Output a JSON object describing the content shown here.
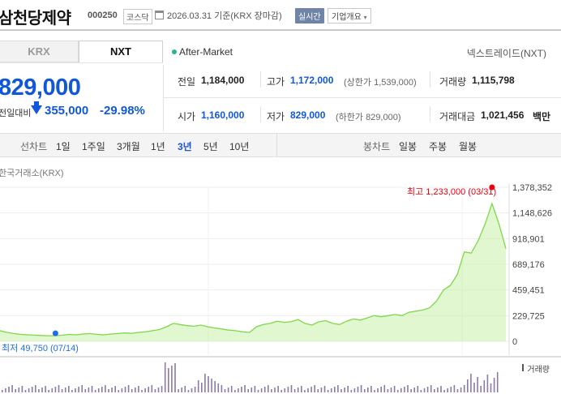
{
  "header": {
    "company_name": "삼천당제약",
    "code": "000250",
    "market_tag": "코스닥",
    "as_of": "2026.03.31  기준(KRX 장마감)",
    "realtime_label": "실시간",
    "company_info_label": "기업개요"
  },
  "tabs": [
    {
      "label": "KRX",
      "selected": false
    },
    {
      "label": "NXT",
      "selected": true
    }
  ],
  "session": {
    "after_market": "After-Market",
    "nxt_label": "넥스트레이드(NXT)"
  },
  "price": {
    "current": "829,000",
    "change_label": "전일대비",
    "change": "355,000",
    "change_pct": "-29.98%",
    "color": "#1058d8"
  },
  "stats": {
    "prev_close_label": "전일",
    "prev_close": "1,184,000",
    "high_label": "고가",
    "high": "1,172,000",
    "upper_limit": "(상한가 1,539,000)",
    "volume_label": "거래량",
    "volume": "1,115,798",
    "open_label": "시가",
    "open": "1,160,000",
    "low_label": "저가",
    "low": "829,000",
    "lower_limit": "(하한가 829,000)",
    "amount_label": "거래대금",
    "amount": "1,021,456",
    "amount_unit": "백만"
  },
  "period_bar": {
    "line_chart_label": "선차트",
    "periods": [
      "1일",
      "1주일",
      "3개월",
      "1년",
      "3년",
      "5년",
      "10년"
    ],
    "selected": "3년",
    "candle_label": "봉차트",
    "candle_periods": [
      "일봉",
      "주봉",
      "월봉"
    ]
  },
  "chart": {
    "source_label": "한국거래소(KRX)",
    "max_label": "최고 1,233,000 (03/31)",
    "min_label": "최저 49,750 (07/14)",
    "volume_label": "거래량",
    "line_color": "#7fd84a",
    "fill_color": "#c6f0a8",
    "max_color": "#e60012",
    "min_color": "#1e6fe0"
  },
  "chart_data": {
    "type": "area",
    "title": "",
    "y_ticks": [
      "1,378,352",
      "1,148,626",
      "918,901",
      "689,176",
      "459,451",
      "229,725",
      "0"
    ],
    "ylim": [
      0,
      1378352
    ],
    "series": [
      {
        "values": [
          95000,
          80000,
          70000,
          62000,
          58000,
          55000,
          52000,
          50000,
          49750,
          55000,
          62000,
          58000,
          65000,
          70000,
          62000,
          58000,
          65000,
          70000,
          75000,
          72000,
          80000,
          85000,
          95000,
          105000,
          130000,
          160000,
          150000,
          140000,
          135000,
          145000,
          130000,
          120000,
          110000,
          100000,
          95000,
          85000,
          80000,
          130000,
          150000,
          160000,
          180000,
          170000,
          175000,
          195000,
          160000,
          145000,
          175000,
          185000,
          160000,
          150000,
          180000,
          200000,
          190000,
          210000,
          230000,
          220000,
          230000,
          240000,
          230000,
          260000,
          270000,
          280000,
          300000,
          360000,
          460000,
          500000,
          600000,
          800000,
          790000,
          900000,
          1050000,
          1233000,
          1050000,
          829000
        ]
      }
    ],
    "max_point": {
      "value": 1233000,
      "date": "03/31"
    },
    "min_point": {
      "value": 49750,
      "date": "07/14"
    }
  }
}
